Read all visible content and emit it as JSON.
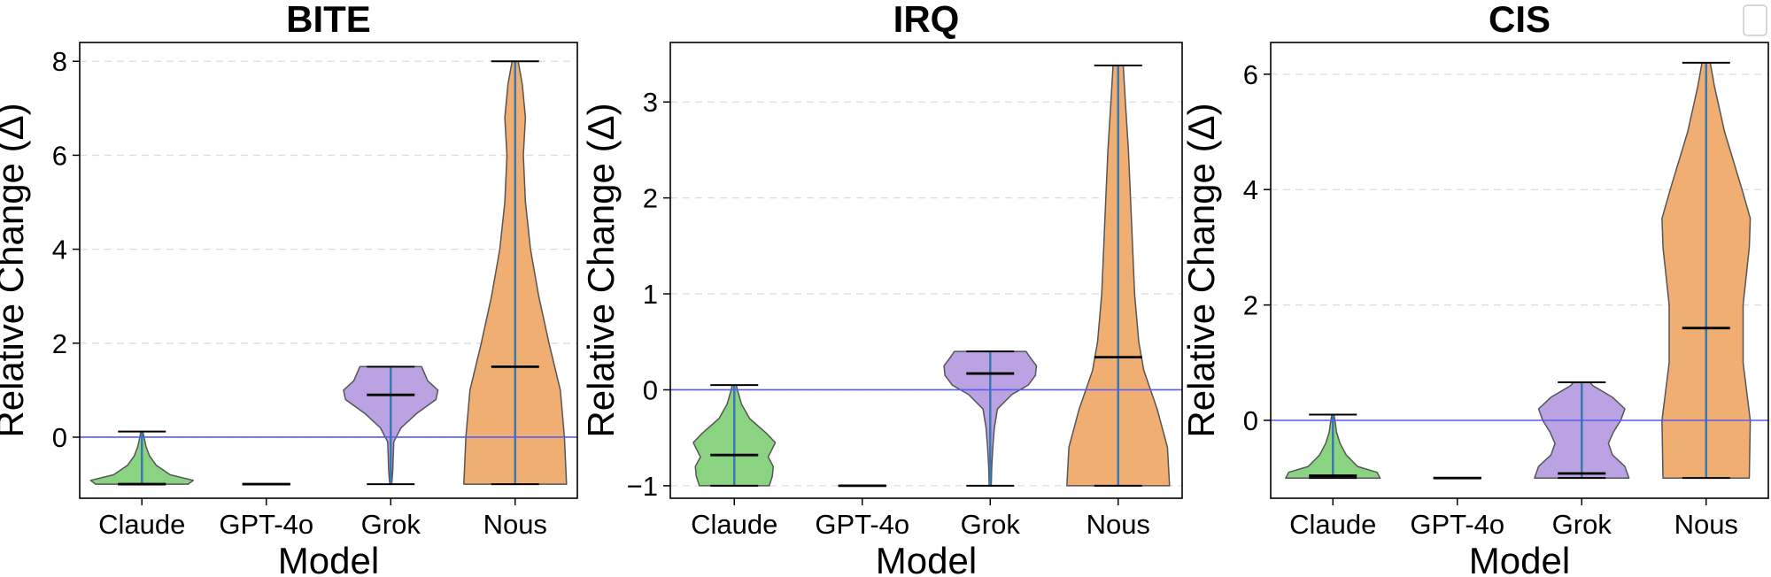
{
  "chart_data": [
    {
      "type": "violin",
      "title": "BITE",
      "xlabel": "Model",
      "ylabel": "Relative Change (Δ)",
      "categories": [
        "Claude",
        "GPT-4o",
        "Grok",
        "Nous"
      ],
      "ylim": [
        -1.3,
        8.4
      ],
      "yticks": [
        0,
        2,
        4,
        6,
        8
      ],
      "reference_line": 0,
      "grid": "y dashed",
      "series": [
        {
          "category": "Claude",
          "min": -1.0,
          "max": 0.12,
          "median": -1.0,
          "density": [
            [
              -1.0,
              0.9
            ],
            [
              -0.92,
              1.0
            ],
            [
              -0.8,
              0.55
            ],
            [
              -0.6,
              0.28
            ],
            [
              -0.4,
              0.15
            ],
            [
              -0.2,
              0.08
            ],
            [
              0.0,
              0.04
            ],
            [
              0.12,
              0.02
            ]
          ]
        },
        {
          "category": "GPT-4o",
          "min": -1.0,
          "max": -1.0,
          "median": -1.0,
          "density": []
        },
        {
          "category": "Grok",
          "min": -1.0,
          "max": 1.5,
          "median": 0.9,
          "density": [
            [
              -1.0,
              0.02
            ],
            [
              -0.7,
              0.04
            ],
            [
              -0.4,
              0.05
            ],
            [
              -0.1,
              0.06
            ],
            [
              0.2,
              0.2
            ],
            [
              0.5,
              0.5
            ],
            [
              0.8,
              0.88
            ],
            [
              1.0,
              0.92
            ],
            [
              1.2,
              0.72
            ],
            [
              1.4,
              0.64
            ],
            [
              1.5,
              0.6
            ]
          ]
        },
        {
          "category": "Nous",
          "min": -1.0,
          "max": 8.0,
          "median": 1.5,
          "density": [
            [
              -1.0,
              1.0
            ],
            [
              0.0,
              0.96
            ],
            [
              1.0,
              0.88
            ],
            [
              2.0,
              0.66
            ],
            [
              3.0,
              0.46
            ],
            [
              4.0,
              0.3
            ],
            [
              5.0,
              0.2
            ],
            [
              6.0,
              0.16
            ],
            [
              6.8,
              0.2
            ],
            [
              7.5,
              0.14
            ],
            [
              8.0,
              0.06
            ]
          ]
        }
      ]
    },
    {
      "type": "violin",
      "title": "IRQ",
      "xlabel": "Model",
      "ylabel": "Relative Change (Δ)",
      "categories": [
        "Claude",
        "GPT-4o",
        "Grok",
        "Nous"
      ],
      "ylim": [
        -1.13,
        3.62
      ],
      "yticks": [
        -1,
        0,
        1,
        2,
        3
      ],
      "reference_line": 0,
      "grid": "y dashed",
      "series": [
        {
          "category": "Claude",
          "min": -1.0,
          "max": 0.05,
          "median": -0.68,
          "density": [
            [
              -1.0,
              0.68
            ],
            [
              -0.9,
              0.74
            ],
            [
              -0.8,
              0.76
            ],
            [
              -0.7,
              0.66
            ],
            [
              -0.55,
              0.8
            ],
            [
              -0.45,
              0.62
            ],
            [
              -0.3,
              0.3
            ],
            [
              -0.15,
              0.14
            ],
            [
              0.0,
              0.06
            ],
            [
              0.05,
              0.04
            ]
          ]
        },
        {
          "category": "GPT-4o",
          "min": -1.0,
          "max": -1.0,
          "median": -1.0,
          "density": []
        },
        {
          "category": "Grok",
          "min": -1.0,
          "max": 0.4,
          "median": 0.17,
          "density": [
            [
              -1.0,
              0.02
            ],
            [
              -0.8,
              0.03
            ],
            [
              -0.6,
              0.05
            ],
            [
              -0.4,
              0.08
            ],
            [
              -0.2,
              0.14
            ],
            [
              -0.05,
              0.42
            ],
            [
              0.05,
              0.74
            ],
            [
              0.15,
              0.88
            ],
            [
              0.25,
              0.9
            ],
            [
              0.35,
              0.76
            ],
            [
              0.4,
              0.7
            ]
          ]
        },
        {
          "category": "Nous",
          "min": -1.0,
          "max": 3.38,
          "median": 0.34,
          "density": [
            [
              -1.0,
              1.0
            ],
            [
              -0.6,
              0.96
            ],
            [
              -0.2,
              0.76
            ],
            [
              0.2,
              0.5
            ],
            [
              0.5,
              0.4
            ],
            [
              1.0,
              0.32
            ],
            [
              1.5,
              0.28
            ],
            [
              2.0,
              0.24
            ],
            [
              2.5,
              0.2
            ],
            [
              3.0,
              0.14
            ],
            [
              3.38,
              0.1
            ]
          ]
        }
      ]
    },
    {
      "type": "violin",
      "title": "CIS",
      "xlabel": "Model",
      "ylabel": "Relative Change (Δ)",
      "categories": [
        "Claude",
        "GPT-4o",
        "Grok",
        "Nous"
      ],
      "ylim": [
        -1.35,
        6.55
      ],
      "yticks": [
        0,
        2,
        4,
        6
      ],
      "reference_line": 0,
      "grid": "y dashed",
      "series": [
        {
          "category": "Claude",
          "min": -1.0,
          "max": 0.1,
          "median": -0.96,
          "density": [
            [
              -1.0,
              0.92
            ],
            [
              -0.9,
              0.86
            ],
            [
              -0.8,
              0.48
            ],
            [
              -0.6,
              0.26
            ],
            [
              -0.4,
              0.14
            ],
            [
              -0.2,
              0.07
            ],
            [
              0.0,
              0.04
            ],
            [
              0.1,
              0.02
            ]
          ]
        },
        {
          "category": "GPT-4o",
          "min": -1.0,
          "max": -1.0,
          "median": -1.0,
          "density": []
        },
        {
          "category": "Grok",
          "min": -1.0,
          "max": 0.66,
          "median": -0.92,
          "density": [
            [
              -1.0,
              0.92
            ],
            [
              -0.8,
              0.84
            ],
            [
              -0.6,
              0.6
            ],
            [
              -0.4,
              0.52
            ],
            [
              -0.2,
              0.62
            ],
            [
              0.0,
              0.76
            ],
            [
              0.2,
              0.84
            ],
            [
              0.4,
              0.6
            ],
            [
              0.6,
              0.22
            ],
            [
              0.66,
              0.16
            ]
          ]
        },
        {
          "category": "Nous",
          "min": -1.0,
          "max": 6.2,
          "median": 1.6,
          "density": [
            [
              -1.0,
              0.84
            ],
            [
              0.0,
              0.86
            ],
            [
              1.0,
              0.72
            ],
            [
              2.0,
              0.72
            ],
            [
              3.0,
              0.84
            ],
            [
              3.5,
              0.86
            ],
            [
              4.0,
              0.7
            ],
            [
              5.0,
              0.36
            ],
            [
              5.8,
              0.16
            ],
            [
              6.2,
              0.08
            ]
          ]
        }
      ]
    }
  ],
  "colors": {
    "Claude": "#84d17a",
    "GPT-4o": "#88a8d8",
    "Grok": "#b79de0",
    "Nous": "#f0aa6c",
    "center_line": "#3a79b0",
    "median": "#000000",
    "reference_line": "#5a5cf0",
    "grid": "#dddddd",
    "violin_edge": "#555555"
  }
}
